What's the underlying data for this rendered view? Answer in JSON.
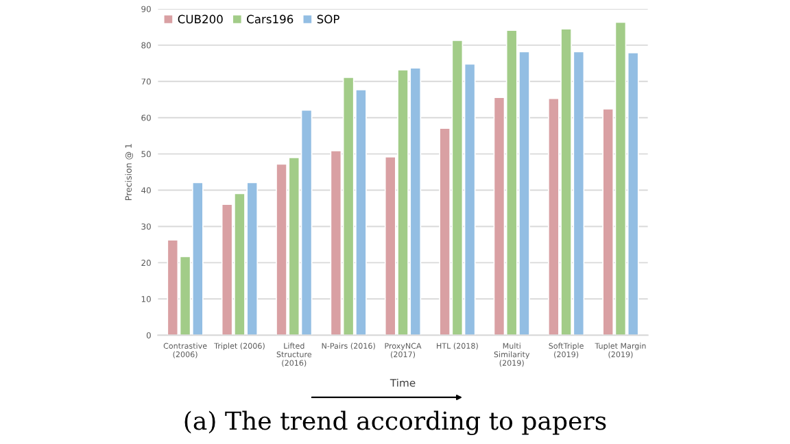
{
  "chart_data": {
    "type": "bar",
    "categories": [
      "Contrastive\n(2006)",
      "Triplet (2006)",
      "Lifted\nStructure\n(2016)",
      "N-Pairs (2016)",
      "ProxyNCA\n(2017)",
      "HTL (2018)",
      "Multi\nSimilarity\n(2019)",
      "SoftTriple\n(2019)",
      "Tuplet Margin\n(2019)"
    ],
    "series": [
      {
        "name": "CUB200",
        "color": "#d9a0a3",
        "values": [
          26.3,
          36.1,
          47.2,
          50.9,
          49.2,
          57.1,
          65.6,
          65.3,
          62.4
        ]
      },
      {
        "name": "Cars196",
        "color": "#a2cc88",
        "values": [
          21.7,
          39.1,
          49.0,
          71.1,
          73.2,
          81.3,
          84.1,
          84.5,
          86.3
        ]
      },
      {
        "name": "SOP",
        "color": "#93bee3",
        "values": [
          42.1,
          42.1,
          62.1,
          67.7,
          73.7,
          74.8,
          78.2,
          78.2,
          77.9
        ]
      }
    ],
    "xlabel": "Time",
    "ylabel": "Precision @ 1",
    "ylim": [
      0,
      90
    ],
    "yticks": [
      0,
      10,
      20,
      30,
      40,
      50,
      60,
      70,
      80,
      90
    ],
    "grid": "y",
    "legend": "top left",
    "annotations": [
      "(a) The trend according to papers"
    ]
  }
}
